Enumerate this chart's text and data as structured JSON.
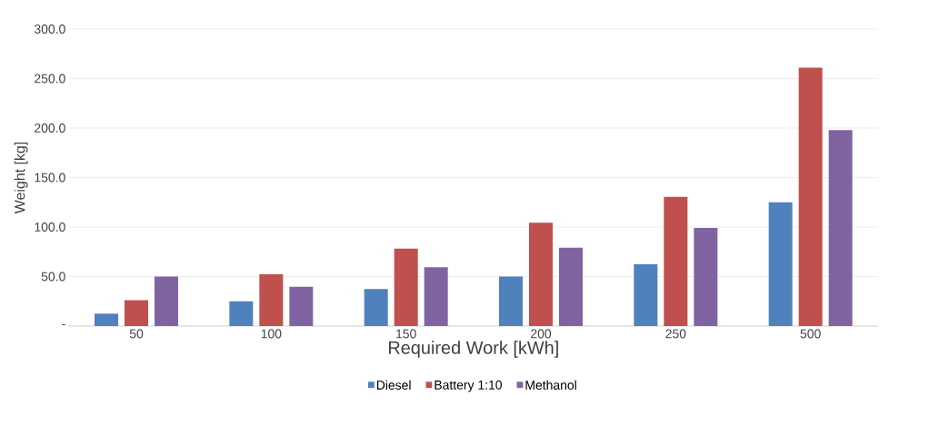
{
  "chart_data": {
    "type": "bar",
    "xlabel": "Required Work  [kWh]",
    "ylabel": "Weight [kg]",
    "categories": [
      "50",
      "100",
      "150",
      "200",
      "250",
      "500"
    ],
    "series": [
      {
        "name": "Diesel",
        "color": "#4f81bd",
        "values": [
          12.5,
          25,
          37.5,
          50,
          62.5,
          125
        ]
      },
      {
        "name": "Battery 1:10",
        "color": "#c0504d",
        "values": [
          26.1,
          52.2,
          78.3,
          104.4,
          130.5,
          261
        ]
      },
      {
        "name": "Methanol",
        "color": "#8064a2",
        "values": [
          50,
          39.6,
          59.4,
          79.2,
          99,
          198
        ]
      }
    ],
    "ylim": [
      0,
      300
    ],
    "yticks": [
      {
        "value": 0,
        "label": "-"
      },
      {
        "value": 50,
        "label": "50.0"
      },
      {
        "value": 100,
        "label": "100.0"
      },
      {
        "value": 150,
        "label": "150.0"
      },
      {
        "value": 200,
        "label": "200.0"
      },
      {
        "value": 250,
        "label": "250.0"
      },
      {
        "value": 300,
        "label": "300.0"
      }
    ],
    "grid": "y",
    "legend": "bottom"
  }
}
